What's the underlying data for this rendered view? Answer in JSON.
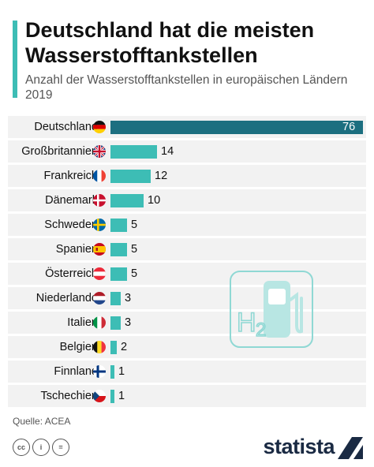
{
  "header": {
    "title": "Deutschland hat die meisten Wasserstofftankstellen",
    "subtitle": "Anzahl der Wasserstofftankstellen in europäischen Ländern 2019"
  },
  "colors": {
    "accent": "#3dbdb5",
    "highlight": "#1c6f80",
    "row_bg": "#f2f2f2",
    "brand": "#1a2a43"
  },
  "chart_data": {
    "type": "bar",
    "orientation": "horizontal",
    "title": "Deutschland hat die meisten Wasserstofftankstellen",
    "subtitle": "Anzahl der Wasserstofftankstellen in europäischen Ländern 2019",
    "categories": [
      "Deutschland",
      "Großbritannien",
      "Frankreich",
      "Dänemark",
      "Schweden",
      "Spanien",
      "Österreich",
      "Niederlande",
      "Italien",
      "Belgien",
      "Finnland",
      "Tschechien"
    ],
    "values": [
      76,
      14,
      12,
      10,
      5,
      5,
      5,
      3,
      3,
      2,
      1,
      1
    ],
    "flags": [
      "de",
      "gb",
      "fr",
      "dk",
      "se",
      "es",
      "at",
      "nl",
      "it",
      "be",
      "fi",
      "cz"
    ],
    "xlim": [
      0,
      76
    ],
    "grid": false,
    "legend": "none"
  },
  "footer": {
    "source": "Quelle: ACEA",
    "brand": "statista",
    "license_icons": [
      "cc-icon",
      "by-icon",
      "nd-icon"
    ]
  },
  "icon": {
    "name": "hydrogen-fuel-pump-icon",
    "label": "H2"
  }
}
